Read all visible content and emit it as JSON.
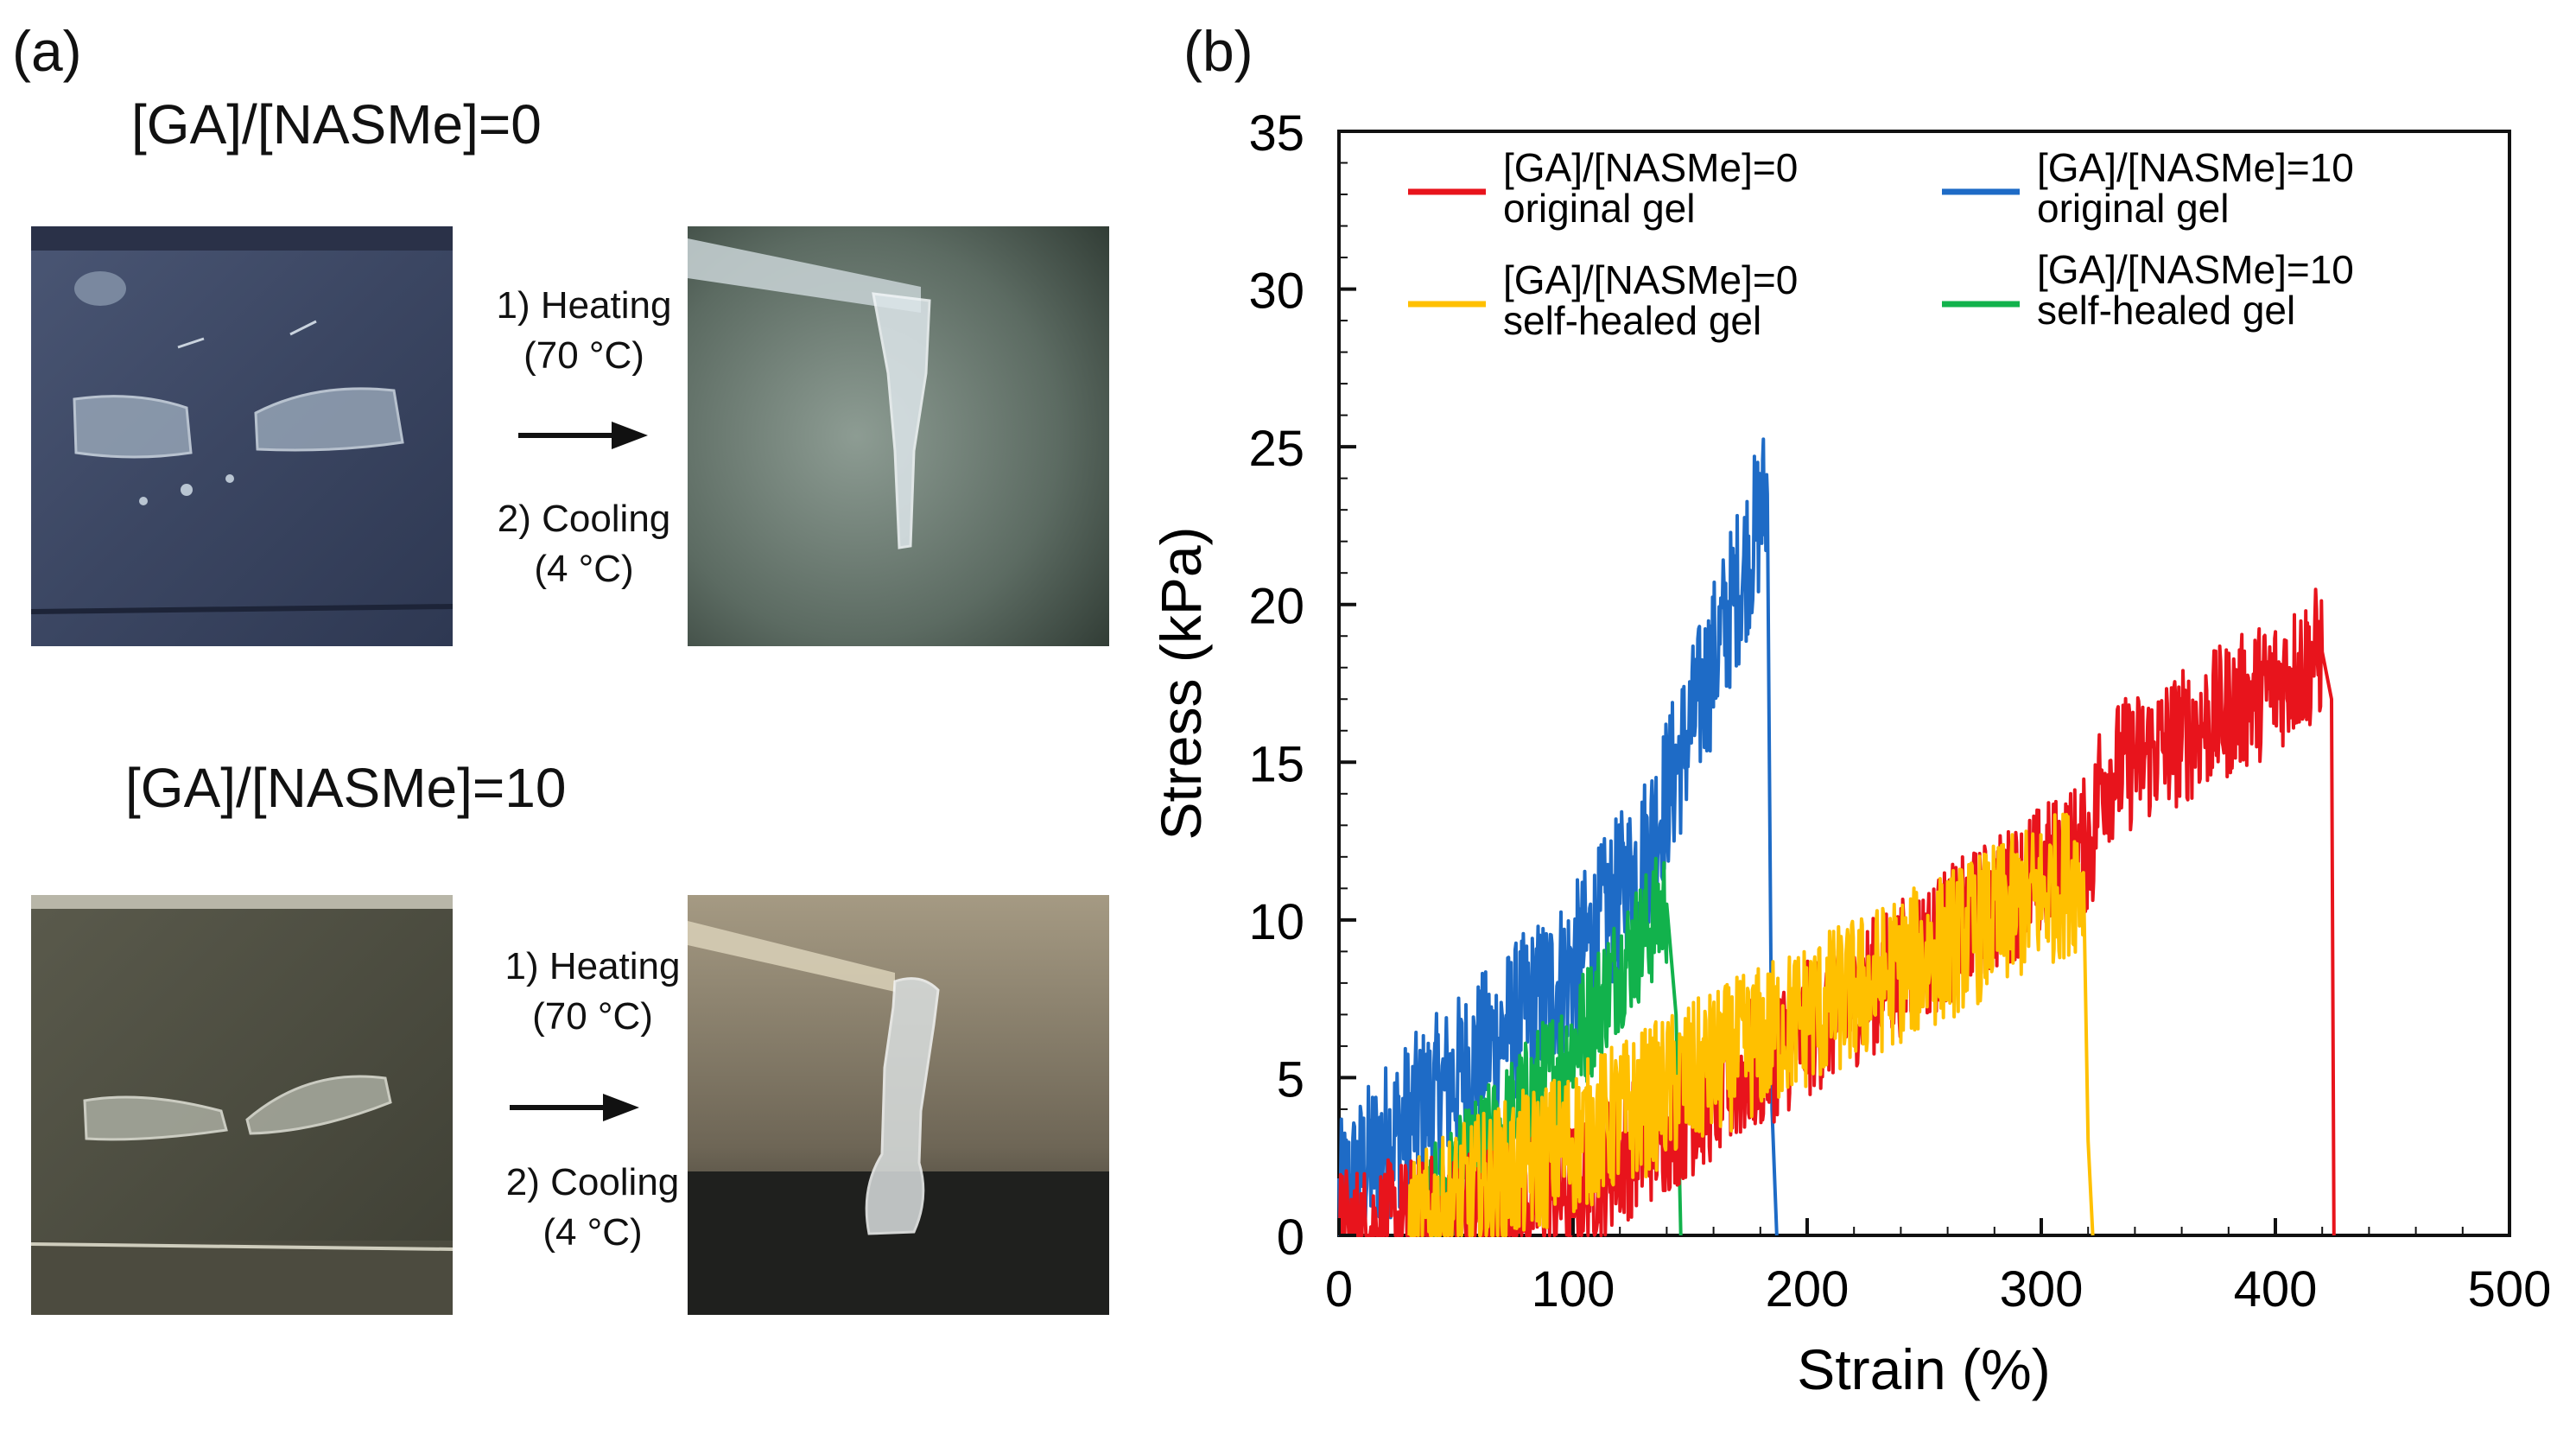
{
  "panel_a": {
    "label": "(a)",
    "rows": [
      {
        "title": "[GA]/[NASMe]=0",
        "step1": "1) Heating",
        "temp1": "(70 °C)",
        "step2": "2) Cooling",
        "temp2": "(4 °C)"
      },
      {
        "title": "[GA]/[NASMe]=10",
        "step1": "1) Heating",
        "temp1": "(70 °C)",
        "step2": "2) Cooling",
        "temp2": "(4 °C)"
      }
    ]
  },
  "panel_b": {
    "label": "(b)"
  },
  "chart_data": {
    "type": "line",
    "title": "",
    "xlabel": "Strain (%)",
    "ylabel": "Stress (kPa)",
    "xlim": [
      0,
      500
    ],
    "ylim": [
      0,
      35
    ],
    "xticks": [
      0,
      100,
      200,
      300,
      400,
      500
    ],
    "yticks": [
      0,
      5,
      10,
      15,
      20,
      25,
      30,
      35
    ],
    "legend_position": "top",
    "series": [
      {
        "name_line1": "[GA]/[NASMe]=0",
        "name_line2": "original gel",
        "color": "#e8141c",
        "noise": 2.2,
        "x": [
          0,
          50,
          100,
          150,
          200,
          250,
          300,
          322,
          325,
          360,
          400,
          420,
          424,
          425
        ],
        "y": [
          0,
          0.5,
          1.5,
          4.0,
          6.5,
          9.0,
          11.5,
          12.5,
          14.5,
          15.8,
          17.5,
          18.5,
          17.0,
          0
        ]
      },
      {
        "name_line1": "[GA]/[NASMe]=0",
        "name_line2": "self-healed gel",
        "color": "#ffc000",
        "noise": 2.4,
        "x": [
          30,
          60,
          100,
          150,
          200,
          250,
          300,
          318,
          320,
          322
        ],
        "y": [
          0,
          1.5,
          3.0,
          5.0,
          7.0,
          8.8,
          10.8,
          11.5,
          3.0,
          0
        ]
      },
      {
        "name_line1": "[GA]/[NASMe]=10",
        "name_line2": "original gel",
        "color": "#1e6bc6",
        "noise": 2.6,
        "x": [
          0,
          20,
          50,
          100,
          130,
          150,
          170,
          183,
          185,
          187
        ],
        "y": [
          1.0,
          3.0,
          5.0,
          8.5,
          12.0,
          16.0,
          20.5,
          23.5,
          4.0,
          0
        ]
      },
      {
        "name_line1": "[GA]/[NASMe]=10",
        "name_line2": "self-healed gel",
        "color": "#12b24c",
        "noise": 2.0,
        "x": [
          30,
          60,
          100,
          120,
          140,
          144,
          146
        ],
        "y": [
          0,
          2.5,
          6.0,
          8.5,
          10.5,
          7.0,
          0
        ]
      }
    ]
  }
}
